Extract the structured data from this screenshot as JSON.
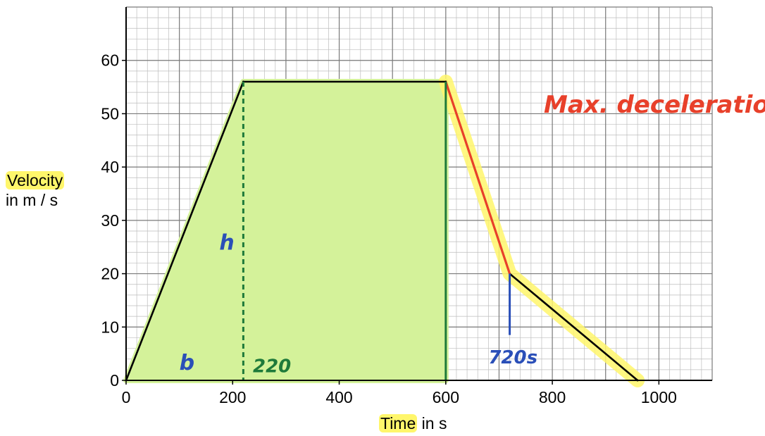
{
  "chart_data": {
    "type": "line",
    "xlabel": "Time in s",
    "ylabel_line1": "Velocity",
    "ylabel_line2": "in m / s",
    "xlim": [
      0,
      1100
    ],
    "ylim": [
      0,
      70
    ],
    "x_ticks": [
      0,
      200,
      400,
      600,
      800,
      1000
    ],
    "y_ticks": [
      0,
      10,
      20,
      30,
      40,
      50,
      60
    ],
    "minor_grid_step_x": 20,
    "minor_grid_step_y": 2,
    "grid": true,
    "series": [
      {
        "values": [
          [
            0,
            0
          ],
          [
            220,
            56
          ],
          [
            600,
            56
          ],
          [
            720,
            20
          ],
          [
            960,
            0
          ]
        ]
      }
    ],
    "shaded_area": {
      "x": [
        0,
        220,
        600
      ],
      "description_color": "#d4f29a"
    },
    "highlighted_segments": [
      [
        600,
        720
      ],
      [
        720,
        960
      ]
    ],
    "red_segment": [
      [
        600,
        56
      ],
      [
        720,
        20
      ]
    ],
    "dashed_line_x": 220,
    "solid_line_x": 600,
    "marker_x": 720,
    "annotations": {
      "max_deceleration": "Max. deceleration",
      "h": "h",
      "b": "b",
      "t220": "220",
      "t720": "720s"
    },
    "colors": {
      "line": "#000000",
      "fill": "#d4f29a",
      "highlight": "#fff66b",
      "red": "#e8402a",
      "green": "#1e7a3a",
      "blue": "#2a4fb8",
      "grid_major": "#7a7a7a",
      "grid_minor": "#bdbdbd"
    }
  }
}
